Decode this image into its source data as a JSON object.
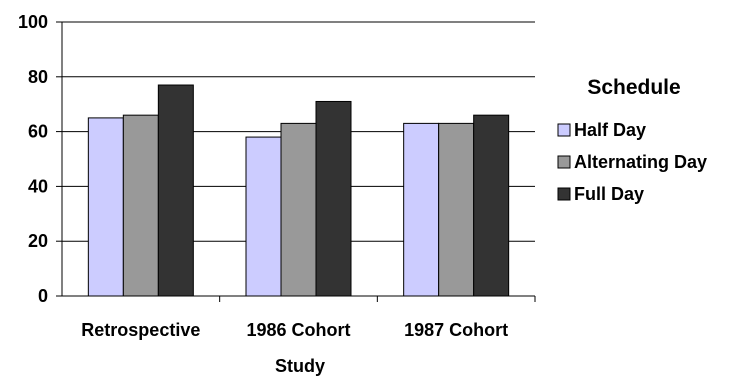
{
  "chart_data": {
    "type": "bar",
    "categories": [
      "Retrospective",
      "1986 Cohort",
      "1987 Cohort"
    ],
    "series": [
      {
        "name": "Half Day",
        "color": "#ccccff",
        "values": [
          65,
          58,
          63
        ]
      },
      {
        "name": "Alternating Day",
        "color": "#999999",
        "values": [
          66,
          63,
          63
        ]
      },
      {
        "name": "Full Day",
        "color": "#333333",
        "values": [
          77,
          71,
          66
        ]
      }
    ],
    "xlabel": "Study",
    "ylabel": "",
    "ylim": [
      0,
      100
    ],
    "yticks": [
      0,
      20,
      40,
      60,
      80,
      100
    ],
    "grid": true,
    "legend": {
      "title": "Schedule",
      "position": "right"
    }
  }
}
